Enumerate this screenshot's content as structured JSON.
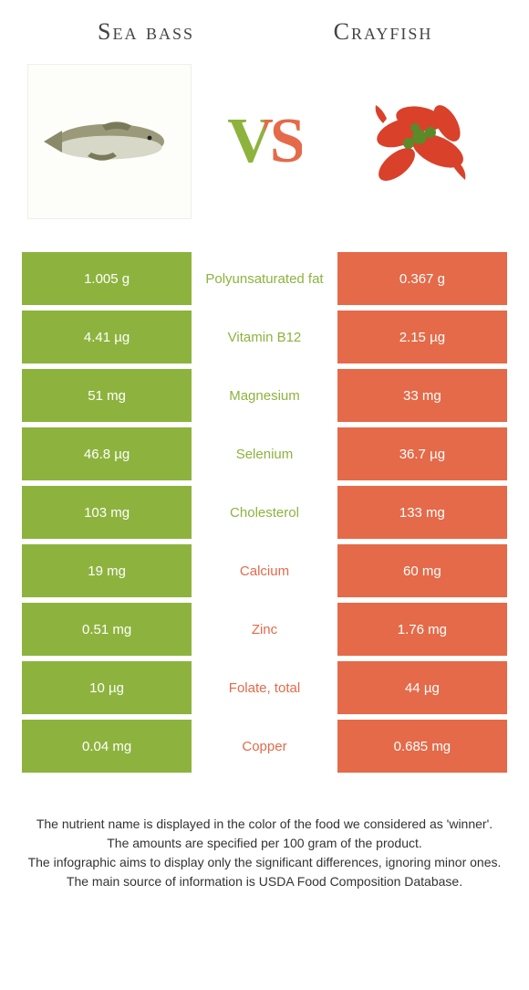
{
  "colors": {
    "left": "#8db33e",
    "right": "#e46a49",
    "mid_bg": "#ffffff"
  },
  "foods": {
    "left": "Sea bass",
    "right": "Crayfish"
  },
  "vs": "VS",
  "rows": [
    {
      "left": "1.005 g",
      "name": "Polyunsaturated fat",
      "right": "0.367 g",
      "winner": "left"
    },
    {
      "left": "4.41 µg",
      "name": "Vitamin B12",
      "right": "2.15 µg",
      "winner": "left"
    },
    {
      "left": "51 mg",
      "name": "Magnesium",
      "right": "33 mg",
      "winner": "left"
    },
    {
      "left": "46.8 µg",
      "name": "Selenium",
      "right": "36.7 µg",
      "winner": "left"
    },
    {
      "left": "103 mg",
      "name": "Cholesterol",
      "right": "133 mg",
      "winner": "left"
    },
    {
      "left": "19 mg",
      "name": "Calcium",
      "right": "60 mg",
      "winner": "right"
    },
    {
      "left": "0.51 mg",
      "name": "Zinc",
      "right": "1.76 mg",
      "winner": "right"
    },
    {
      "left": "10 µg",
      "name": "Folate, total",
      "right": "44 µg",
      "winner": "right"
    },
    {
      "left": "0.04 mg",
      "name": "Copper",
      "right": "0.685 mg",
      "winner": "right"
    }
  ],
  "footer": [
    "The nutrient name is displayed in the color of the food we considered as 'winner'.",
    "The amounts are specified per 100 gram of the product.",
    "The infographic aims to display only the significant differences, ignoring minor ones.",
    "The main source of information is USDA Food Composition Database."
  ]
}
